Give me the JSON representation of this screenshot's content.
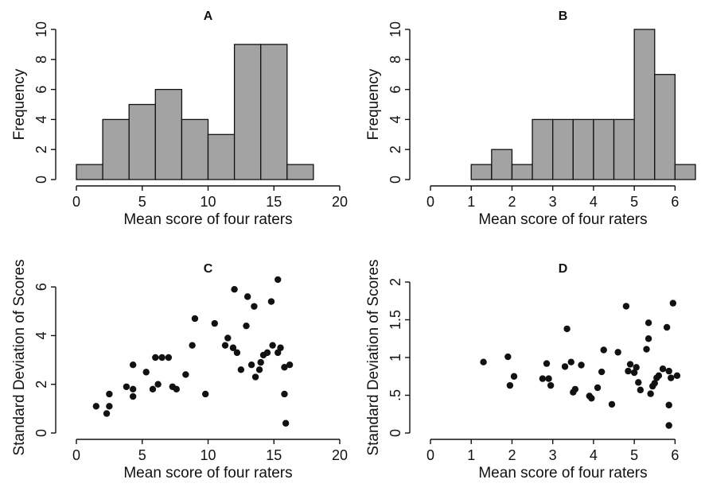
{
  "chart_data": [
    {
      "panel": "A",
      "type": "bar",
      "title": "A",
      "xlabel": "Mean score of four raters",
      "ylabel": "Frequency",
      "xlim": [
        0,
        20
      ],
      "ylim": [
        0,
        10
      ],
      "xticks": [
        0,
        5,
        10,
        15,
        20
      ],
      "yticks": [
        0,
        2,
        4,
        6,
        8,
        10
      ],
      "bins": [
        {
          "x0": 0,
          "x1": 2,
          "count": 1
        },
        {
          "x0": 2,
          "x1": 4,
          "count": 4
        },
        {
          "x0": 4,
          "x1": 6,
          "count": 5
        },
        {
          "x0": 6,
          "x1": 8,
          "count": 6
        },
        {
          "x0": 8,
          "x1": 10,
          "count": 4
        },
        {
          "x0": 10,
          "x1": 12,
          "count": 3
        },
        {
          "x0": 12,
          "x1": 14,
          "count": 9
        },
        {
          "x0": 14,
          "x1": 16,
          "count": 9
        },
        {
          "x0": 16,
          "x1": 18,
          "count": 1
        }
      ]
    },
    {
      "panel": "B",
      "type": "bar",
      "title": "B",
      "xlabel": "Mean score of four raters",
      "ylabel": "Frequency",
      "xlim": [
        0,
        6.5
      ],
      "ylim": [
        0,
        10
      ],
      "xticks": [
        0,
        1,
        2,
        3,
        4,
        5,
        6
      ],
      "yticks": [
        0,
        2,
        4,
        6,
        8,
        10
      ],
      "bins": [
        {
          "x0": 1.0,
          "x1": 1.5,
          "count": 1
        },
        {
          "x0": 1.5,
          "x1": 2.0,
          "count": 2
        },
        {
          "x0": 2.0,
          "x1": 2.5,
          "count": 1
        },
        {
          "x0": 2.5,
          "x1": 3.0,
          "count": 4
        },
        {
          "x0": 3.0,
          "x1": 3.5,
          "count": 4
        },
        {
          "x0": 3.5,
          "x1": 4.0,
          "count": 4
        },
        {
          "x0": 4.0,
          "x1": 4.5,
          "count": 4
        },
        {
          "x0": 4.5,
          "x1": 5.0,
          "count": 4
        },
        {
          "x0": 5.0,
          "x1": 5.5,
          "count": 10
        },
        {
          "x0": 5.5,
          "x1": 6.0,
          "count": 7
        },
        {
          "x0": 6.0,
          "x1": 6.5,
          "count": 1
        }
      ]
    },
    {
      "panel": "C",
      "type": "scatter",
      "title": "C",
      "xlabel": "Mean score of four raters",
      "ylabel": "Standard Deviation of Scores",
      "xlim": [
        0,
        20
      ],
      "ylim": [
        0,
        6.2
      ],
      "xticks": [
        0,
        5,
        10,
        15,
        20
      ],
      "yticks": [
        0,
        2,
        4,
        6
      ],
      "points": [
        [
          1.5,
          1.1
        ],
        [
          2.3,
          0.8
        ],
        [
          2.5,
          1.1
        ],
        [
          2.5,
          1.6
        ],
        [
          3.8,
          1.9
        ],
        [
          4.3,
          2.8
        ],
        [
          4.3,
          1.8
        ],
        [
          4.3,
          1.5
        ],
        [
          5.3,
          2.5
        ],
        [
          5.8,
          1.8
        ],
        [
          6.0,
          3.1
        ],
        [
          6.2,
          2.0
        ],
        [
          6.5,
          3.1
        ],
        [
          7.0,
          3.1
        ],
        [
          7.3,
          1.9
        ],
        [
          7.6,
          1.8
        ],
        [
          8.3,
          2.4
        ],
        [
          8.8,
          3.6
        ],
        [
          9.0,
          4.7
        ],
        [
          9.8,
          1.6
        ],
        [
          10.5,
          4.5
        ],
        [
          11.3,
          3.6
        ],
        [
          11.5,
          3.9
        ],
        [
          11.9,
          3.5
        ],
        [
          12.0,
          5.9
        ],
        [
          12.2,
          3.3
        ],
        [
          12.5,
          2.6
        ],
        [
          12.9,
          4.4
        ],
        [
          13.0,
          5.6
        ],
        [
          13.3,
          2.8
        ],
        [
          13.5,
          5.2
        ],
        [
          13.6,
          2.3
        ],
        [
          13.9,
          2.6
        ],
        [
          14.0,
          2.9
        ],
        [
          14.2,
          3.2
        ],
        [
          14.5,
          3.3
        ],
        [
          14.8,
          5.4
        ],
        [
          14.9,
          3.6
        ],
        [
          15.3,
          6.3
        ],
        [
          15.3,
          3.3
        ],
        [
          15.5,
          3.5
        ],
        [
          15.8,
          2.7
        ],
        [
          15.8,
          1.6
        ],
        [
          15.9,
          0.4
        ],
        [
          16.2,
          2.8
        ]
      ]
    },
    {
      "panel": "D",
      "type": "scatter",
      "title": "D",
      "xlabel": "Mean score of four raters",
      "ylabel": "Standard Deviation of Scores",
      "xlim": [
        0,
        6.5
      ],
      "ylim": [
        0,
        2
      ],
      "xticks": [
        0,
        1,
        2,
        3,
        4,
        5,
        6
      ],
      "yticks": [
        0,
        0.5,
        1,
        1.5,
        2
      ],
      "ytick_labels": [
        "0",
        ".5",
        "1",
        "1.5",
        "2"
      ],
      "points": [
        [
          1.3,
          0.94
        ],
        [
          1.9,
          1.01
        ],
        [
          1.95,
          0.63
        ],
        [
          2.05,
          0.75
        ],
        [
          2.75,
          0.72
        ],
        [
          2.85,
          0.92
        ],
        [
          2.9,
          0.72
        ],
        [
          2.95,
          0.63
        ],
        [
          3.3,
          0.88
        ],
        [
          3.35,
          1.38
        ],
        [
          3.45,
          0.94
        ],
        [
          3.5,
          0.54
        ],
        [
          3.55,
          0.58
        ],
        [
          3.7,
          0.9
        ],
        [
          3.9,
          0.49
        ],
        [
          3.95,
          0.46
        ],
        [
          4.1,
          0.6
        ],
        [
          4.2,
          0.81
        ],
        [
          4.25,
          1.1
        ],
        [
          4.45,
          0.38
        ],
        [
          4.6,
          1.07
        ],
        [
          4.8,
          1.68
        ],
        [
          4.85,
          0.82
        ],
        [
          4.9,
          0.91
        ],
        [
          5.0,
          0.8
        ],
        [
          5.05,
          0.87
        ],
        [
          5.1,
          0.67
        ],
        [
          5.15,
          0.57
        ],
        [
          5.3,
          1.11
        ],
        [
          5.35,
          1.25
        ],
        [
          5.35,
          1.46
        ],
        [
          5.4,
          0.52
        ],
        [
          5.45,
          0.62
        ],
        [
          5.5,
          0.66
        ],
        [
          5.55,
          0.73
        ],
        [
          5.6,
          0.76
        ],
        [
          5.7,
          0.85
        ],
        [
          5.8,
          1.4
        ],
        [
          5.85,
          0.82
        ],
        [
          5.85,
          0.37
        ],
        [
          5.85,
          0.1
        ],
        [
          5.9,
          0.73
        ],
        [
          5.95,
          1.72
        ],
        [
          6.05,
          0.76
        ]
      ]
    }
  ]
}
